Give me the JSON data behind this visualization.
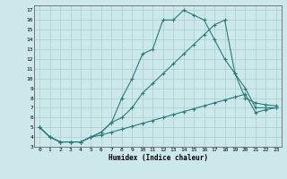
{
  "xlabel": "Humidex (Indice chaleur)",
  "background_color": "#cce8ea",
  "line_color": "#2a7a78",
  "grid_color": "#aacdd0",
  "xlim": [
    -0.5,
    23.5
  ],
  "ylim": [
    3,
    17.5
  ],
  "xticks": [
    0,
    1,
    2,
    3,
    4,
    5,
    6,
    7,
    8,
    9,
    10,
    11,
    12,
    13,
    14,
    15,
    16,
    17,
    18,
    19,
    20,
    21,
    22,
    23
  ],
  "yticks": [
    3,
    4,
    5,
    6,
    7,
    8,
    9,
    10,
    11,
    12,
    13,
    14,
    15,
    16,
    17
  ],
  "line1_x": [
    0,
    1,
    2,
    3,
    4,
    5,
    6,
    7,
    8,
    9,
    10,
    11,
    12,
    13,
    14,
    15,
    16,
    17,
    18,
    19,
    20,
    21,
    22,
    23
  ],
  "line1_y": [
    5.0,
    4.0,
    3.5,
    3.5,
    3.5,
    4.0,
    4.5,
    5.5,
    8.0,
    10.0,
    12.5,
    13.0,
    16.0,
    16.0,
    17.0,
    16.5,
    16.0,
    14.0,
    12.0,
    10.5,
    9.0,
    7.0,
    7.0,
    7.0
  ],
  "line2_x": [
    0,
    1,
    2,
    3,
    4,
    5,
    6,
    7,
    8,
    9,
    10,
    11,
    12,
    13,
    14,
    15,
    16,
    17,
    18,
    19,
    20,
    21,
    22,
    23
  ],
  "line2_y": [
    5.0,
    4.0,
    3.5,
    3.5,
    3.5,
    4.0,
    4.5,
    5.5,
    6.0,
    7.0,
    8.5,
    9.5,
    10.5,
    11.5,
    12.5,
    13.5,
    14.5,
    15.5,
    16.0,
    10.5,
    8.0,
    7.5,
    7.3,
    7.2
  ],
  "line3_x": [
    0,
    1,
    2,
    3,
    4,
    5,
    6,
    7,
    8,
    9,
    10,
    11,
    12,
    13,
    14,
    15,
    16,
    17,
    18,
    19,
    20,
    21,
    22,
    23
  ],
  "line3_y": [
    5.0,
    4.0,
    3.5,
    3.5,
    3.5,
    4.0,
    4.2,
    4.5,
    4.8,
    5.1,
    5.4,
    5.7,
    6.0,
    6.3,
    6.6,
    6.9,
    7.2,
    7.5,
    7.8,
    8.1,
    8.4,
    6.5,
    6.8,
    7.0
  ]
}
